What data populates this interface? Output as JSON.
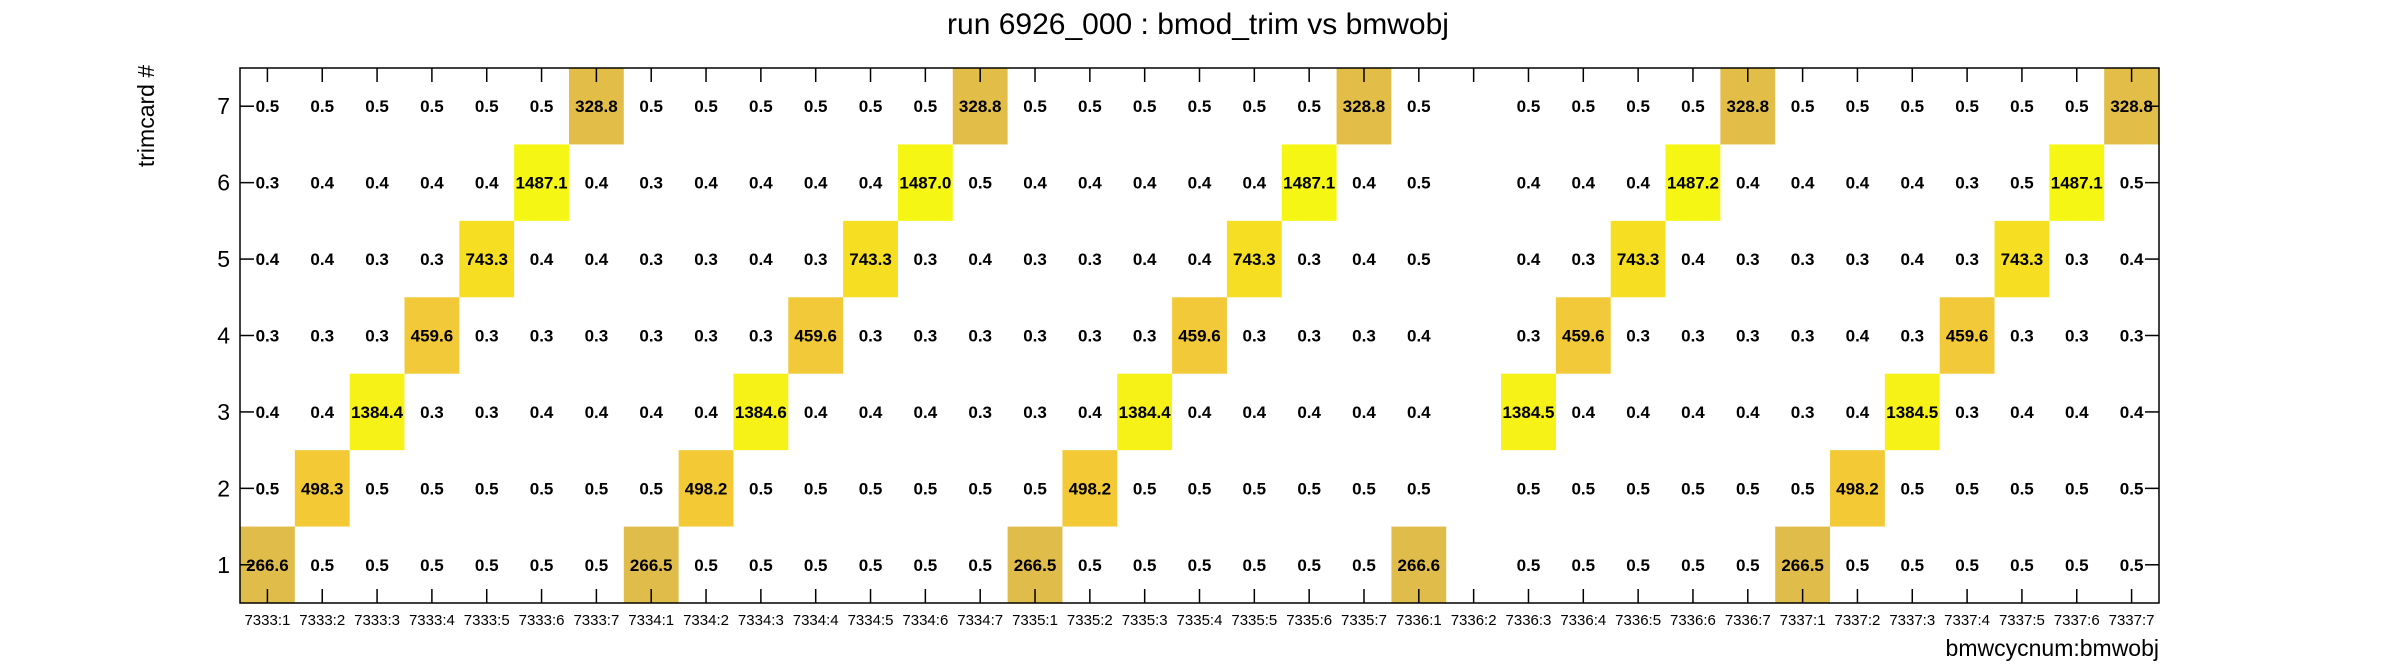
{
  "chart_data": {
    "type": "heatmap",
    "title": "run 6926_000 : bmod_trim vs bmwobj",
    "xlabel": "bmwcycnum:bmwobj",
    "ylabel": "trimcard #",
    "x_categories": [
      "7333:1",
      "7333:2",
      "7333:3",
      "7333:4",
      "7333:5",
      "7333:6",
      "7333:7",
      "7334:1",
      "7334:2",
      "7334:3",
      "7334:4",
      "7334:5",
      "7334:6",
      "7334:7",
      "7335:1",
      "7335:2",
      "7335:3",
      "7335:4",
      "7335:5",
      "7335:6",
      "7335:7",
      "7336:1",
      "7336:2",
      "7336:3",
      "7336:4",
      "7336:5",
      "7336:6",
      "7336:7",
      "7337:1",
      "7337:2",
      "7337:3",
      "7337:4",
      "7337:5",
      "7337:6",
      "7337:7"
    ],
    "y_categories": [
      "1",
      "2",
      "3",
      "4",
      "5",
      "6",
      "7"
    ],
    "grid": false,
    "values": [
      [
        "266.6",
        "0.5",
        "0.5",
        "0.5",
        "0.5",
        "0.5",
        "0.5",
        "266.5",
        "0.5",
        "0.5",
        "0.5",
        "0.5",
        "0.5",
        "0.5",
        "266.5",
        "0.5",
        "0.5",
        "0.5",
        "0.5",
        "0.5",
        "0.5",
        "266.6",
        null,
        "0.5",
        "0.5",
        "0.5",
        "0.5",
        "0.5",
        "266.5",
        "0.5",
        "0.5",
        "0.5",
        "0.5",
        "0.5",
        "0.5"
      ],
      [
        "0.5",
        "498.3",
        "0.5",
        "0.5",
        "0.5",
        "0.5",
        "0.5",
        "0.5",
        "498.2",
        "0.5",
        "0.5",
        "0.5",
        "0.5",
        "0.5",
        "0.5",
        "498.2",
        "0.5",
        "0.5",
        "0.5",
        "0.5",
        "0.5",
        "0.5",
        null,
        "0.5",
        "0.5",
        "0.5",
        "0.5",
        "0.5",
        "0.5",
        "498.2",
        "0.5",
        "0.5",
        "0.5",
        "0.5",
        "0.5"
      ],
      [
        "0.4",
        "0.4",
        "1384.4",
        "0.3",
        "0.3",
        "0.4",
        "0.4",
        "0.4",
        "0.4",
        "1384.6",
        "0.4",
        "0.4",
        "0.4",
        "0.3",
        "0.3",
        "0.4",
        "1384.4",
        "0.4",
        "0.4",
        "0.4",
        "0.4",
        "0.4",
        null,
        "1384.5",
        "0.4",
        "0.4",
        "0.4",
        "0.4",
        "0.3",
        "0.4",
        "1384.5",
        "0.3",
        "0.4",
        "0.4",
        "0.4"
      ],
      [
        "0.3",
        "0.3",
        "0.3",
        "459.6",
        "0.3",
        "0.3",
        "0.3",
        "0.3",
        "0.3",
        "0.3",
        "459.6",
        "0.3",
        "0.3",
        "0.3",
        "0.3",
        "0.3",
        "0.3",
        "459.6",
        "0.3",
        "0.3",
        "0.3",
        "0.4",
        null,
        "0.3",
        "459.6",
        "0.3",
        "0.3",
        "0.3",
        "0.3",
        "0.4",
        "0.3",
        "459.6",
        "0.3",
        "0.3",
        "0.3"
      ],
      [
        "0.4",
        "0.4",
        "0.3",
        "0.3",
        "743.3",
        "0.4",
        "0.4",
        "0.3",
        "0.3",
        "0.4",
        "0.3",
        "743.3",
        "0.3",
        "0.4",
        "0.3",
        "0.3",
        "0.4",
        "0.4",
        "743.3",
        "0.3",
        "0.4",
        "0.5",
        null,
        "0.4",
        "0.3",
        "743.3",
        "0.4",
        "0.3",
        "0.3",
        "0.3",
        "0.4",
        "0.3",
        "743.3",
        "0.3",
        "0.4"
      ],
      [
        "0.3",
        "0.4",
        "0.4",
        "0.4",
        "0.4",
        "1487.1",
        "0.4",
        "0.3",
        "0.4",
        "0.4",
        "0.4",
        "0.4",
        "1487.0",
        "0.5",
        "0.4",
        "0.4",
        "0.4",
        "0.4",
        "0.4",
        "1487.1",
        "0.4",
        "0.5",
        null,
        "0.4",
        "0.4",
        "0.4",
        "1487.2",
        "0.4",
        "0.4",
        "0.4",
        "0.4",
        "0.3",
        "0.5",
        "1487.1",
        "0.5"
      ],
      [
        "0.5",
        "0.5",
        "0.5",
        "0.5",
        "0.5",
        "0.5",
        "328.8",
        "0.5",
        "0.5",
        "0.5",
        "0.5",
        "0.5",
        "0.5",
        "328.8",
        "0.5",
        "0.5",
        "0.5",
        "0.5",
        "0.5",
        "0.5",
        "328.8",
        "0.5",
        null,
        "0.5",
        "0.5",
        "0.5",
        "0.5",
        "328.8",
        "0.5",
        "0.5",
        "0.5",
        "0.5",
        "0.5",
        "0.5",
        "328.8"
      ]
    ],
    "colors": {
      "266": "#e0bd4b",
      "328": "#e2be48",
      "459": "#f2c938",
      "498": "#f3ca36",
      "743": "#f6df22",
      "1384": "#f6f116",
      "1487": "#f6f614"
    }
  }
}
